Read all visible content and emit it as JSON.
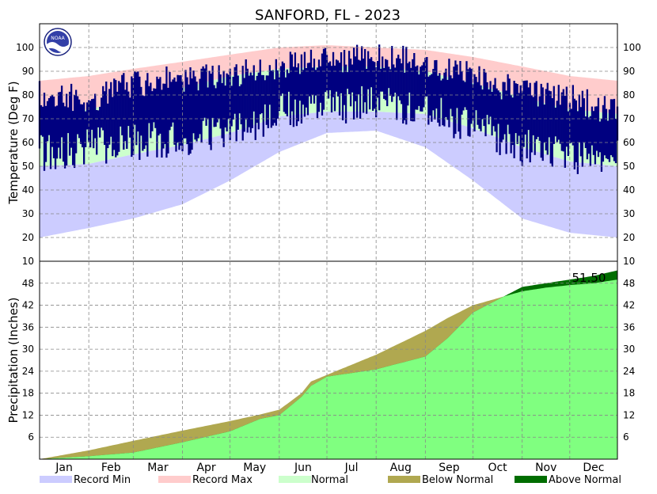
{
  "chart_data": [
    {
      "type": "area",
      "panel": "temperature",
      "title": "SANFORD, FL - 2023",
      "ylabel": "Temperature (Deg F)",
      "ylim": [
        10,
        110
      ],
      "yticks": [
        10,
        20,
        30,
        40,
        50,
        60,
        70,
        80,
        90,
        100
      ],
      "grid": true,
      "logo": "NOAA",
      "months": [
        "Jan",
        "Feb",
        "Mar",
        "Apr",
        "May",
        "Jun",
        "Jul",
        "Aug",
        "Sep",
        "Oct",
        "Nov",
        "Dec"
      ],
      "x_day_of_year": [
        1,
        32,
        60,
        91,
        121,
        152,
        182,
        213,
        244,
        274,
        305,
        335,
        365
      ],
      "record_max": [
        86,
        88,
        91,
        94,
        97,
        100,
        101,
        100,
        99,
        96,
        92,
        88,
        86
      ],
      "normal_high": [
        72,
        74,
        78,
        83,
        88,
        91,
        92,
        92,
        90,
        85,
        79,
        74,
        72
      ],
      "normal_low": [
        50,
        51,
        55,
        59,
        64,
        71,
        73,
        73,
        72,
        66,
        58,
        52,
        50
      ],
      "record_min": [
        20,
        24,
        28,
        34,
        44,
        56,
        64,
        65,
        58,
        44,
        28,
        22,
        20
      ],
      "observed_high": [
        80,
        78,
        85,
        87,
        88,
        93,
        94,
        97,
        93,
        88,
        81,
        79,
        72
      ],
      "observed_low": [
        55,
        58,
        60,
        62,
        64,
        73,
        75,
        76,
        74,
        67,
        58,
        54,
        56
      ]
    },
    {
      "type": "area",
      "panel": "precipitation",
      "ylabel": "Precipitation (Inches)",
      "ylim": [
        0,
        54
      ],
      "yticks": [
        6,
        12,
        18,
        24,
        30,
        36,
        42,
        48
      ],
      "grid": true,
      "annotation": "51.50",
      "x_day_of_year": [
        1,
        32,
        60,
        91,
        121,
        140,
        152,
        166,
        172,
        182,
        213,
        244,
        258,
        274,
        305,
        320,
        335,
        350,
        365
      ],
      "observed_ytd": [
        0.0,
        0.8,
        1.8,
        4.6,
        7.6,
        11.0,
        12.0,
        17.0,
        20.0,
        22.5,
        24.5,
        28.0,
        33.0,
        40.0,
        47.0,
        48.0,
        49.0,
        50.0,
        51.5
      ],
      "normal_ytd": [
        0.0,
        2.4,
        5.0,
        7.8,
        10.4,
        12.2,
        13.5,
        18.0,
        21.2,
        23.0,
        28.5,
        35.0,
        38.5,
        42.0,
        45.8,
        46.8,
        47.5,
        48.0,
        49.0
      ]
    }
  ],
  "legend": [
    {
      "label": "Record Min",
      "color": "#ccccff"
    },
    {
      "label": "Record Max",
      "color": "#ffcccc"
    },
    {
      "label": "Normal",
      "color": "#ccffcc"
    },
    {
      "label": "Below Normal",
      "color": "#b0a850"
    },
    {
      "label": "Above Normal",
      "color": "#006d00"
    }
  ],
  "colors": {
    "record_min": "#ccccff",
    "record_max": "#ffcccc",
    "normal": "#ccffcc",
    "observed": "#000080",
    "observed_precip": "#80ff80",
    "below_normal": "#b0a850",
    "above_normal": "#006d00"
  }
}
